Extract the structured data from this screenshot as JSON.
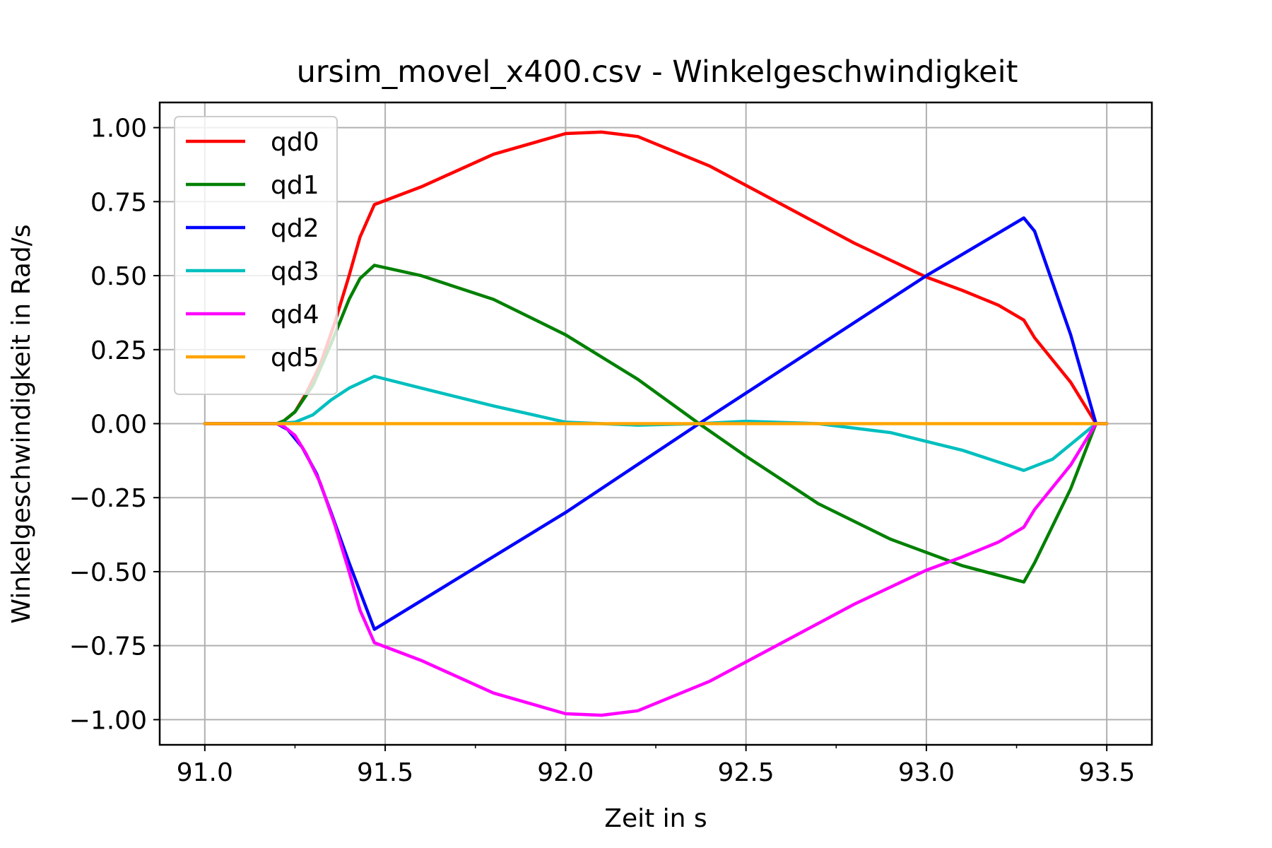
{
  "chart_data": {
    "type": "line",
    "title": "ursim_movel_x400.csv - Winkelgeschwindigkeit",
    "xlabel": "Zeit in s",
    "ylabel": "Winkelgeschwindigkeit in Rad/s",
    "xlim": [
      90.875,
      93.625
    ],
    "ylim": [
      -1.085,
      1.085
    ],
    "x_ticks": [
      91.0,
      91.5,
      92.0,
      92.5,
      93.0,
      93.5
    ],
    "x_minor_ticks": [
      91.25,
      91.75,
      92.25,
      92.75,
      93.25
    ],
    "x_tick_labels": [
      "91.0",
      "91.5",
      "92.0",
      "92.5",
      "93.0",
      "93.5"
    ],
    "y_ticks": [
      1.0,
      0.75,
      0.5,
      0.25,
      0.0,
      -0.25,
      -0.5,
      -0.75,
      -1.0
    ],
    "y_tick_labels": [
      "1.00",
      "0.75",
      "0.50",
      "0.25",
      "0.00",
      "−0.25",
      "−0.50",
      "−0.75",
      "−1.00"
    ],
    "grid": true,
    "legend_position": "top-left",
    "series": [
      {
        "name": "qd0",
        "color": "#ff0000",
        "x": [
          91.0,
          91.2,
          91.22,
          91.25,
          91.28,
          91.32,
          91.36,
          91.4,
          91.43,
          91.47,
          91.6,
          91.8,
          92.0,
          92.1,
          92.2,
          92.4,
          92.6,
          92.8,
          93.0,
          93.1,
          93.2,
          93.27,
          93.3,
          93.4,
          93.47,
          93.5
        ],
        "y": [
          0.0,
          0.0,
          0.01,
          0.04,
          0.1,
          0.2,
          0.34,
          0.5,
          0.63,
          0.74,
          0.8,
          0.91,
          0.98,
          0.985,
          0.97,
          0.87,
          0.74,
          0.61,
          0.495,
          0.45,
          0.4,
          0.35,
          0.29,
          0.14,
          0.0,
          0.0
        ]
      },
      {
        "name": "qd1",
        "color": "#008000",
        "x": [
          91.0,
          91.2,
          91.22,
          91.25,
          91.3,
          91.35,
          91.4,
          91.43,
          91.47,
          91.6,
          91.8,
          92.0,
          92.2,
          92.37,
          92.5,
          92.7,
          92.9,
          93.1,
          93.27,
          93.3,
          93.4,
          93.47,
          93.5
        ],
        "y": [
          0.0,
          0.0,
          0.01,
          0.04,
          0.13,
          0.27,
          0.42,
          0.49,
          0.535,
          0.5,
          0.42,
          0.3,
          0.15,
          0.0,
          -0.11,
          -0.27,
          -0.39,
          -0.48,
          -0.535,
          -0.47,
          -0.22,
          0.0,
          0.0
        ]
      },
      {
        "name": "qd2",
        "color": "#0000ff",
        "x": [
          91.0,
          91.2,
          91.23,
          91.27,
          91.31,
          91.35,
          91.4,
          91.47,
          92.0,
          92.37,
          93.0,
          93.27,
          93.3,
          93.4,
          93.47,
          93.5
        ],
        "y": [
          0.0,
          0.0,
          -0.02,
          -0.08,
          -0.17,
          -0.3,
          -0.47,
          -0.695,
          -0.3,
          0.0,
          0.5,
          0.695,
          0.65,
          0.3,
          0.0,
          0.0
        ]
      },
      {
        "name": "qd3",
        "color": "#00bfbf",
        "x": [
          91.0,
          91.2,
          91.25,
          91.3,
          91.35,
          91.4,
          91.47,
          91.6,
          91.8,
          92.0,
          92.2,
          92.37,
          92.5,
          92.7,
          92.9,
          93.1,
          93.27,
          93.35,
          93.47,
          93.5
        ],
        "y": [
          0.0,
          0.0,
          0.005,
          0.03,
          0.08,
          0.12,
          0.16,
          0.12,
          0.06,
          0.005,
          -0.005,
          0.0,
          0.008,
          0.0,
          -0.03,
          -0.09,
          -0.158,
          -0.12,
          0.0,
          0.0
        ]
      },
      {
        "name": "qd4",
        "color": "#ff00ff",
        "x": [
          91.0,
          91.2,
          91.22,
          91.25,
          91.28,
          91.32,
          91.36,
          91.4,
          91.43,
          91.47,
          91.6,
          91.8,
          92.0,
          92.1,
          92.2,
          92.4,
          92.6,
          92.8,
          93.0,
          93.1,
          93.2,
          93.27,
          93.3,
          93.4,
          93.47,
          93.5
        ],
        "y": [
          0.0,
          0.0,
          -0.01,
          -0.04,
          -0.1,
          -0.2,
          -0.34,
          -0.5,
          -0.63,
          -0.74,
          -0.8,
          -0.91,
          -0.98,
          -0.985,
          -0.97,
          -0.87,
          -0.74,
          -0.61,
          -0.495,
          -0.45,
          -0.4,
          -0.35,
          -0.29,
          -0.14,
          0.0,
          0.0
        ]
      },
      {
        "name": "qd5",
        "color": "#ffa500",
        "x": [
          91.0,
          93.5
        ],
        "y": [
          0.0,
          0.0
        ]
      }
    ]
  }
}
